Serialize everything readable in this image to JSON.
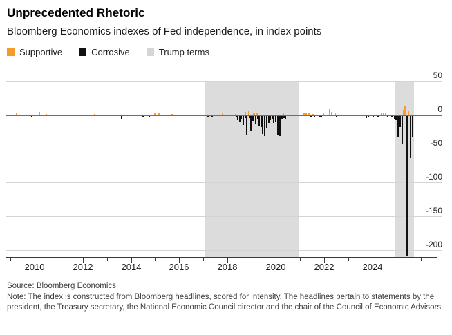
{
  "header": {
    "title": "Unprecedented Rhetoric",
    "subtitle": "Bloomberg Economics indexes of Fed independence, in index points"
  },
  "legend": [
    {
      "label": "Supportive",
      "color": "#F8992C"
    },
    {
      "label": "Corrosive",
      "color": "#111111"
    },
    {
      "label": "Trump terms",
      "color": "#D6D6D6"
    }
  ],
  "footer": {
    "source": "Source: Bloomberg Economics",
    "note": "Note: The index is constructed from Bloomberg headlines, scored for intensity. The headlines pertain to statements by the president, the Treasury secretary, the National Economic Council director and the chair of the Council of Economic Advisors."
  },
  "chart_data": {
    "type": "bar",
    "title": "Bloomberg Economics indexes of Fed independence",
    "ylabel": "index points",
    "grid": "horizontal",
    "legend_position": "top-left",
    "xlim": [
      2008.8,
      2026.9
    ],
    "ylim": [
      -210,
      50
    ],
    "y_ticks": [
      50,
      0,
      -50,
      -100,
      -150,
      -200
    ],
    "x_ticks_labeled": [
      2010,
      2012,
      2014,
      2016,
      2018,
      2020,
      2022,
      2024
    ],
    "x_ticks_minor": [
      2009,
      2011,
      2013,
      2015,
      2017,
      2019,
      2021,
      2023,
      2025,
      2026
    ],
    "bands": [
      {
        "label": "Trump terms",
        "from": 2017.04,
        "to": 2020.97
      },
      {
        "label": "Trump terms",
        "from": 2024.92,
        "to": 2025.72
      }
    ],
    "series": [
      {
        "name": "Supportive",
        "color": "#F8992C",
        "points": [
          [
            2009.25,
            2
          ],
          [
            2010.2,
            4
          ],
          [
            2010.5,
            1
          ],
          [
            2012.5,
            1
          ],
          [
            2015.0,
            3
          ],
          [
            2015.15,
            2
          ],
          [
            2015.7,
            1
          ],
          [
            2017.8,
            2
          ],
          [
            2018.35,
            1
          ],
          [
            2018.74,
            4
          ],
          [
            2018.89,
            5
          ],
          [
            2019.08,
            2
          ],
          [
            2019.11,
            3
          ],
          [
            2019.23,
            2
          ],
          [
            2020.3,
            2
          ],
          [
            2021.17,
            2
          ],
          [
            2021.26,
            2
          ],
          [
            2021.37,
            2
          ],
          [
            2021.54,
            1
          ],
          [
            2021.97,
            2
          ],
          [
            2022.23,
            8
          ],
          [
            2022.31,
            4
          ],
          [
            2022.46,
            3
          ],
          [
            2024.37,
            3
          ],
          [
            2024.46,
            2
          ],
          [
            2024.54,
            2
          ],
          [
            2025.29,
            7
          ],
          [
            2025.34,
            13
          ],
          [
            2025.51,
            5
          ]
        ]
      },
      {
        "name": "Corrosive",
        "color": "#111111",
        "points": [
          [
            2009.9,
            -1
          ],
          [
            2013.6,
            -4
          ],
          [
            2014.5,
            -1
          ],
          [
            2014.75,
            -1
          ],
          [
            2017.2,
            -2
          ],
          [
            2017.35,
            -1
          ],
          [
            2018.4,
            -2
          ],
          [
            2018.43,
            -6
          ],
          [
            2018.51,
            -9
          ],
          [
            2018.57,
            -5
          ],
          [
            2018.66,
            -13
          ],
          [
            2018.77,
            -3
          ],
          [
            2018.8,
            -28
          ],
          [
            2018.92,
            -3
          ],
          [
            2018.97,
            -21
          ],
          [
            2019.06,
            -7
          ],
          [
            2019.17,
            -12
          ],
          [
            2019.26,
            -4
          ],
          [
            2019.31,
            -14
          ],
          [
            2019.4,
            -16
          ],
          [
            2019.46,
            -26
          ],
          [
            2019.54,
            -30
          ],
          [
            2019.63,
            -18
          ],
          [
            2019.71,
            -10
          ],
          [
            2019.77,
            -6
          ],
          [
            2019.86,
            -5
          ],
          [
            2019.91,
            -10
          ],
          [
            2020.0,
            -8
          ],
          [
            2020.09,
            -28
          ],
          [
            2020.17,
            -30
          ],
          [
            2020.26,
            -4
          ],
          [
            2020.34,
            -3
          ],
          [
            2020.4,
            -5
          ],
          [
            2021.46,
            -2
          ],
          [
            2021.6,
            -1
          ],
          [
            2021.83,
            -2
          ],
          [
            2021.89,
            -1
          ],
          [
            2022.51,
            -2
          ],
          [
            2023.74,
            -3
          ],
          [
            2023.83,
            -2
          ],
          [
            2024.03,
            -2
          ],
          [
            2024.23,
            -2
          ],
          [
            2024.63,
            -2
          ],
          [
            2024.8,
            -2
          ],
          [
            2024.91,
            -4
          ],
          [
            2024.97,
            -6
          ],
          [
            2025.06,
            -32
          ],
          [
            2025.14,
            -16
          ],
          [
            2025.23,
            -41
          ],
          [
            2025.4,
            -8
          ],
          [
            2025.43,
            -207
          ],
          [
            2025.57,
            -62
          ],
          [
            2025.66,
            -31
          ]
        ]
      }
    ]
  }
}
